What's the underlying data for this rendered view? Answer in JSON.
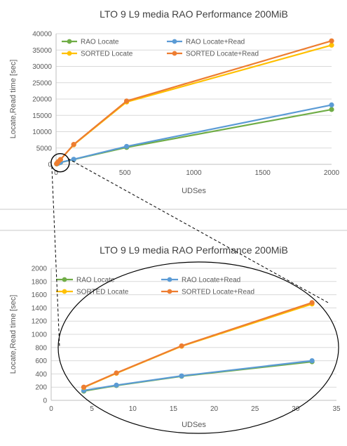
{
  "chart_data": [
    {
      "type": "line",
      "title": "LTO 9 L9 media RAO Performance  200MiB",
      "xlabel": "UDSes",
      "ylabel": "Locate,Read time [sec]",
      "xlim": [
        0,
        2000
      ],
      "ylim": [
        0,
        40000
      ],
      "x_ticks": [
        0,
        500,
        1000,
        1500,
        2000
      ],
      "y_ticks": [
        0,
        5000,
        10000,
        15000,
        20000,
        25000,
        30000,
        35000,
        40000
      ],
      "grid": true,
      "legend": "top",
      "x": [
        4,
        8,
        16,
        32,
        128,
        512,
        2000
      ],
      "series": [
        {
          "name": "RAO Locate",
          "color": "#70ad47",
          "values": [
            140,
            225,
            365,
            585,
            1500,
            5200,
            16800
          ]
        },
        {
          "name": "RAO Locate+Read",
          "color": "#5b9bd5",
          "values": [
            150,
            230,
            370,
            600,
            1550,
            5500,
            18200
          ]
        },
        {
          "name": "SORTED Locate",
          "color": "#ffc000",
          "values": [
            195,
            410,
            820,
            1460,
            6000,
            19100,
            36500
          ]
        },
        {
          "name": "SORTED Locate+Read",
          "color": "#ed7d31",
          "values": [
            200,
            415,
            825,
            1480,
            6100,
            19400,
            37800
          ]
        }
      ]
    },
    {
      "type": "line",
      "title": "LTO 9 L9 media RAO Performance  200MiB",
      "xlabel": "UDSes",
      "ylabel": "Locate,Read time [sec]",
      "xlim": [
        0,
        35
      ],
      "ylim": [
        0,
        2000
      ],
      "x_ticks": [
        0,
        5,
        10,
        15,
        20,
        25,
        30,
        35
      ],
      "y_ticks": [
        0,
        200,
        400,
        600,
        800,
        1000,
        1200,
        1400,
        1600,
        1800,
        2000
      ],
      "grid": true,
      "legend": "top",
      "x": [
        4,
        8,
        16,
        32
      ],
      "series": [
        {
          "name": "RAO Locate",
          "color": "#70ad47",
          "values": [
            140,
            225,
            365,
            585
          ]
        },
        {
          "name": "RAO Locate+Read",
          "color": "#5b9bd5",
          "values": [
            150,
            230,
            370,
            600
          ]
        },
        {
          "name": "SORTED Locate",
          "color": "#ffc000",
          "values": [
            195,
            410,
            820,
            1460
          ]
        },
        {
          "name": "SORTED Locate+Read",
          "color": "#ed7d31",
          "values": [
            200,
            415,
            825,
            1480
          ]
        }
      ]
    }
  ]
}
